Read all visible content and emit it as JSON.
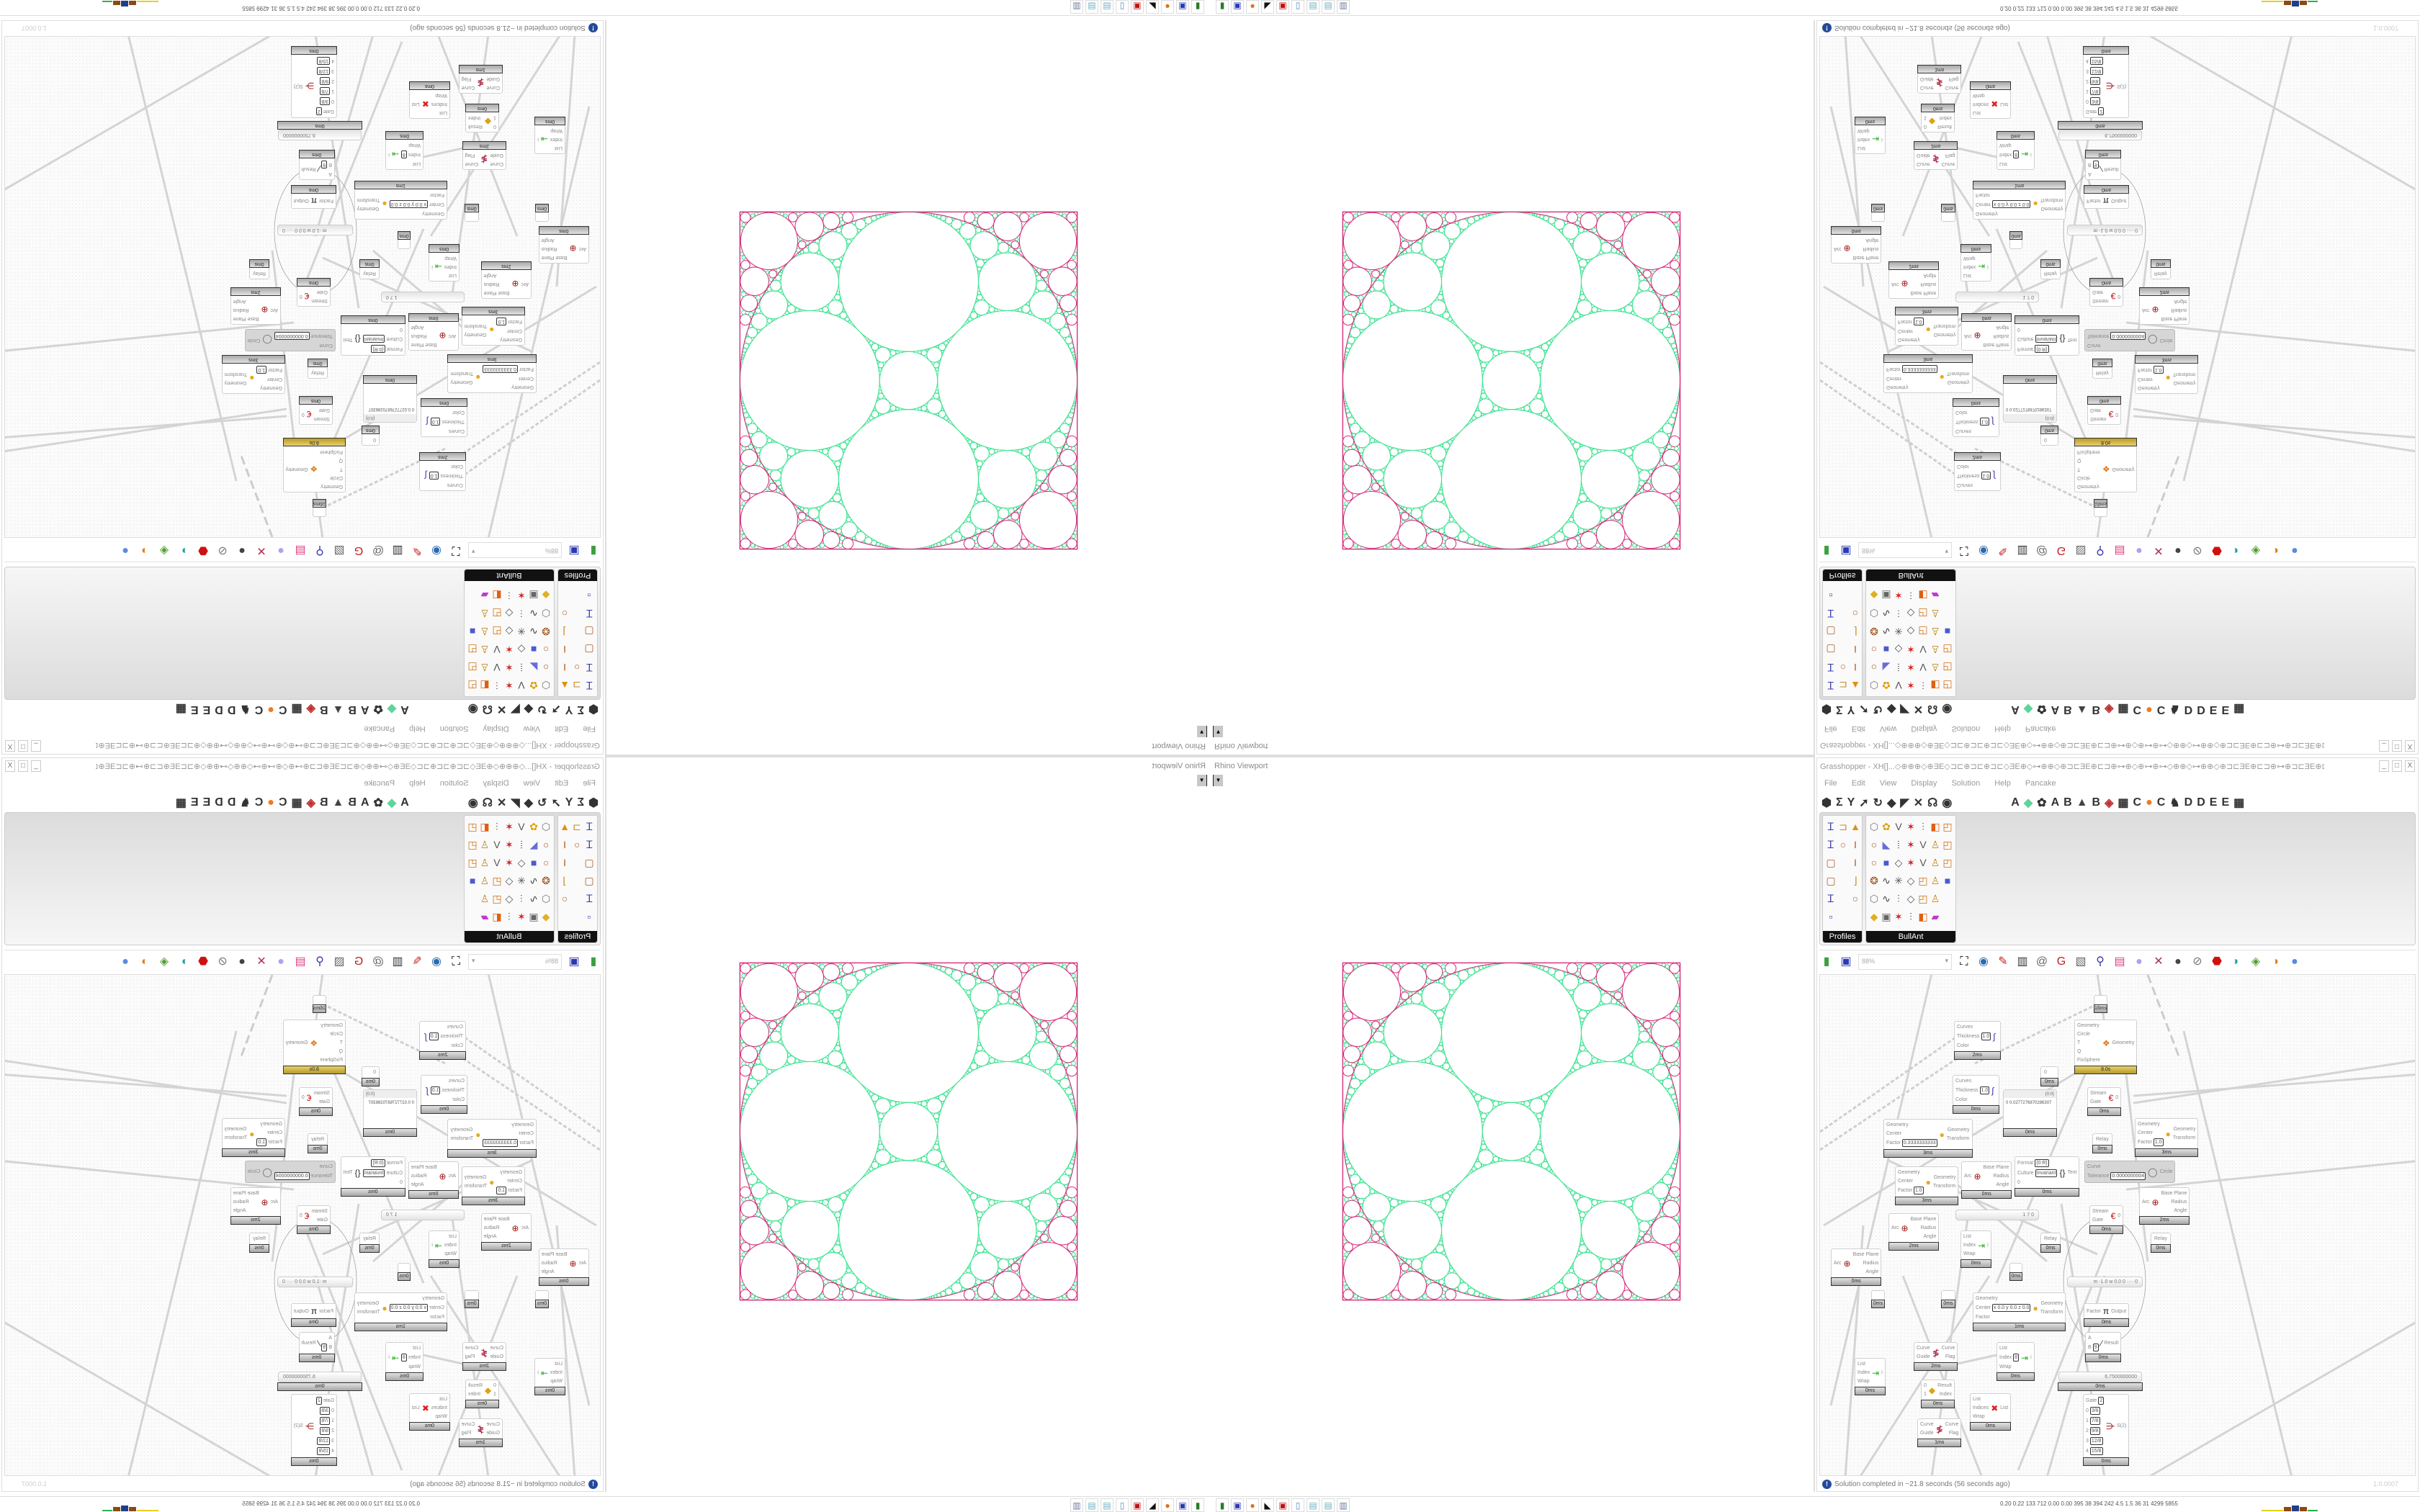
{
  "viewport": {
    "title": "Rhino Viewport",
    "dropdown_icon": "chevron-down-icon",
    "colors": {
      "packing_circles": "#3fe392",
      "outer_circles": "#d6307f"
    }
  },
  "grasshopper": {
    "title": "Grasshopper - XH[]...◇⊕⊕⊕◇⊕ƎE◇⊐⊏⊕⊐⊏⊕⊐⊏◇ƎE⊕◇⊶⊕⊕◇⊕⊐⊏ƎE⊕⊏⊐⊕⊶⊕◇⊕⊶⊕⊶◇⊕⊕◇⊶⊕⊕◇⊕⊐⊏ƎE⊕⊏⊐⊕⊶⊕⊐⊏ƎE⊕⊏⊐⊕...",
    "window_buttons": [
      "_",
      "□",
      "X"
    ],
    "menu": [
      "File",
      "Edit",
      "View",
      "Display",
      "Solution",
      "Help",
      "Pancake"
    ],
    "tab_icons_left": [
      "⬢",
      "Σ",
      "Y",
      "➚",
      "↻",
      "◆",
      "◤",
      "✕",
      "☊",
      "◉"
    ],
    "tab_icons_right": [
      "A",
      "◆",
      "✿",
      "A",
      "B",
      "▲",
      "B",
      "◈",
      "▦",
      "C",
      "●",
      "C",
      "♞",
      "D",
      "D",
      "E",
      "E",
      "▦"
    ],
    "panels": [
      {
        "label": "Profiles",
        "icons": [
          "ibeam-profile",
          "c-channel",
          "fire",
          "ibeam-profile",
          "ring",
          "ibeam",
          "rect",
          "",
          "ibeam",
          "rect",
          "",
          "l-angle",
          "ibeam-profile",
          "",
          "ring",
          "squares"
        ]
      },
      {
        "label": "BullAnt",
        "icons": [
          "block",
          "flower",
          "v-truss",
          "star",
          "divide",
          "warp",
          "frame",
          "ring",
          "surface",
          "grid",
          "star",
          "v-truss",
          "lock",
          "frame",
          "ring",
          "cube",
          "poly",
          "star",
          "v-truss",
          "lock",
          "frame",
          "ball",
          "curve",
          "net",
          "poly",
          "frame",
          "lock",
          "cube",
          "block",
          "curve",
          "divide",
          "poly",
          "frame",
          "lock",
          "",
          "gem",
          "panel",
          "star",
          "divide",
          "warp",
          "rainbow"
        ]
      }
    ],
    "canvas_toolbar": {
      "zoom_value": "88%",
      "icons": [
        "new-document",
        "save",
        "zoom-extents",
        "preview",
        "sketch",
        "bug",
        "mail",
        "gha-export",
        "image",
        "search",
        "package",
        "bulb",
        "weave",
        "sphere-dark",
        "link",
        "red-gem",
        "teal-shape",
        "green-shape",
        "orange-sphere",
        "blue-sphere"
      ]
    },
    "status": {
      "message": "Solution completed in ~21.8 seconds (56 seconds ago)",
      "version": "1.0.0007"
    }
  },
  "canvas": {
    "nodes": [
      {
        "type": "component",
        "inputs": [
          "Curves",
          "Thickness",
          "Color"
        ],
        "values": [
          "",
          "1.0",
          ""
        ],
        "outputs": [],
        "time": "2ms",
        "icon": "custom-preview-icon"
      },
      {
        "type": "component",
        "inputs": [
          "Curves",
          "Thickness",
          "Color"
        ],
        "values": [
          "",
          "1.0",
          ""
        ],
        "outputs": [],
        "time": "0ms",
        "icon": "custom-preview-icon"
      },
      {
        "type": "component",
        "inputs": [
          "Geometry",
          "Center",
          "Factor"
        ],
        "values": [
          "",
          "",
          "0.3333333333"
        ],
        "outputs": [
          "Geometry",
          "Transform"
        ],
        "time": "3ms",
        "icon": "scale-icon"
      },
      {
        "type": "component",
        "inputs": [
          "Geometry",
          "Center",
          "Factor"
        ],
        "values": [
          "",
          "",
          "1.0"
        ],
        "outputs": [
          "Geometry",
          "Transform"
        ],
        "time": "3ms",
        "icon": "scale-icon"
      },
      {
        "type": "component",
        "inputs": [
          "Arc"
        ],
        "values": [
          ""
        ],
        "outputs": [
          "Base Plane",
          "Radius",
          "Angle"
        ],
        "time": "2ms",
        "icon": "deconstruct-arc-icon"
      },
      {
        "type": "component",
        "inputs": [
          "Arc"
        ],
        "values": [
          ""
        ],
        "outputs": [
          "Base Plane",
          "Radius",
          "Angle"
        ],
        "time": "0ms",
        "icon": "deconstruct-arc-icon"
      },
      {
        "type": "panel",
        "header": "{0;0}",
        "text": "0 0.0277276870286307",
        "time": "0ms"
      },
      {
        "type": "component",
        "inputs": [
          "Arc"
        ],
        "values": [
          ""
        ],
        "outputs": [
          "Base Plane",
          "Radius",
          "Angle"
        ],
        "time": "0ms",
        "icon": "deconstruct-arc-icon"
      },
      {
        "type": "component",
        "inputs": [
          "Format",
          "Culture",
          "0"
        ],
        "values": [
          "{0:R}",
          "Invariant",
          ""
        ],
        "outputs": [
          "Text"
        ],
        "time": "0ms",
        "icon": "format-icon"
      },
      {
        "type": "param",
        "label": "0",
        "time": "0ms"
      },
      {
        "type": "component",
        "inputs": [
          "Geometry",
          "Circle",
          "T",
          "Q",
          "FixSphere"
        ],
        "values": [
          "",
          "",
          "",
          "",
          ""
        ],
        "outputs": [
          "Geometry"
        ],
        "time": "8.0s",
        "icon": "apollonian-script-icon",
        "state": "gold"
      },
      {
        "type": "param",
        "label": "",
        "time": "16ms"
      },
      {
        "type": "component",
        "inputs": [
          "Stream",
          "Gate"
        ],
        "values": [
          "",
          ""
        ],
        "outputs": [
          "0"
        ],
        "time": "0ms",
        "icon": "stream-gate-icon"
      },
      {
        "type": "param",
        "label": "Relay",
        "time": "0ms"
      },
      {
        "type": "component",
        "inputs": [
          "Curve",
          "Tolerance"
        ],
        "values": [
          "",
          "0.0000000004"
        ],
        "outputs": [
          "Circle"
        ],
        "time": "",
        "icon": "circle-fit-icon",
        "state": "disabled"
      },
      {
        "type": "component",
        "inputs": [
          "Geometry",
          "Center",
          "Factor"
        ],
        "values": [
          "",
          "",
          "1.0"
        ],
        "outputs": [
          "Geometry",
          "Transform"
        ],
        "time": "3ms",
        "icon": "scale-icon"
      },
      {
        "type": "component",
        "inputs": [
          "Arc"
        ],
        "values": [
          ""
        ],
        "outputs": [
          "Base Plane",
          "Radius",
          "Angle"
        ],
        "time": "2ms",
        "icon": "deconstruct-arc-icon"
      },
      {
        "type": "component",
        "inputs": [
          "Stream",
          "Gate"
        ],
        "values": [
          "",
          ""
        ],
        "outputs": [
          "0"
        ],
        "time": "0ms",
        "icon": "stream-gate-icon"
      },
      {
        "type": "param",
        "label": "Relay",
        "time": "0ms"
      },
      {
        "type": "param",
        "label": "Relay",
        "time": "0ms"
      },
      {
        "type": "slider",
        "value": "1 7 0"
      },
      {
        "type": "component",
        "inputs": [
          "List",
          "Index",
          "Wrap"
        ],
        "values": [
          "",
          "",
          ""
        ],
        "outputs": [
          "i"
        ],
        "time": "0ms",
        "icon": "list-item-icon"
      },
      {
        "type": "param",
        "label": "",
        "time": "0ms"
      },
      {
        "type": "param",
        "label": "",
        "time": "0ms"
      },
      {
        "type": "param",
        "label": "",
        "time": "0ms"
      },
      {
        "type": "component",
        "inputs": [
          "Geometry",
          "Center",
          "Factor"
        ],
        "values": [
          "",
          "x 0.0 y 0.0 z 0.0",
          ""
        ],
        "outputs": [
          "Geometry",
          "Transform"
        ],
        "time": "1ms",
        "icon": "scale-icon"
      },
      {
        "type": "slider",
        "value": "m -1.0 w 0.0 0 ···· 0"
      },
      {
        "type": "component",
        "inputs": [
          "Factor"
        ],
        "values": [
          ""
        ],
        "outputs": [
          "Output"
        ],
        "time": "0ms",
        "icon": "pi-icon"
      },
      {
        "type": "component",
        "inputs": [
          "A",
          "B"
        ],
        "values": [
          "",
          "9"
        ],
        "outputs": [
          "Result"
        ],
        "time": "0ms",
        "icon": "division-icon"
      },
      {
        "type": "slider",
        "value": "6.7500000000",
        "time": "0ms"
      },
      {
        "type": "component",
        "inputs": [
          "Gate",
          "0",
          "1",
          "2",
          "3",
          "4"
        ],
        "values": [
          "2",
          "3/8",
          "7/8",
          "9/8",
          "12/8",
          "15/8"
        ],
        "outputs": [
          "S(2)"
        ],
        "time": "0ms",
        "icon": "stream-filter-icon"
      },
      {
        "type": "component",
        "inputs": [
          "List",
          "Index",
          "Wrap"
        ],
        "values": [
          "",
          "8",
          ""
        ],
        "outputs": [
          "i"
        ],
        "time": "0ms",
        "icon": "list-item-icon"
      },
      {
        "type": "component",
        "inputs": [
          "Curve",
          "Guide"
        ],
        "values": [
          "",
          ""
        ],
        "outputs": [
          "Curve",
          "Flag"
        ],
        "time": "2ms",
        "icon": "flip-curve-icon"
      },
      {
        "type": "component",
        "inputs": [
          "0",
          "1"
        ],
        "values": [
          "",
          ""
        ],
        "outputs": [
          "Result",
          "Index"
        ],
        "time": "0ms",
        "icon": "pick-icon"
      },
      {
        "type": "component",
        "inputs": [
          "List",
          "Indices",
          "Wrap"
        ],
        "values": [
          "",
          "",
          ""
        ],
        "outputs": [
          "List"
        ],
        "time": "0ms",
        "icon": "cull-index-icon"
      },
      {
        "type": "component",
        "inputs": [
          "List",
          "Index",
          "Wrap"
        ],
        "values": [
          "",
          "",
          ""
        ],
        "outputs": [
          "i"
        ],
        "time": "0ms",
        "icon": "list-item-icon"
      },
      {
        "type": "component",
        "inputs": [
          "Curve",
          "Guide"
        ],
        "values": [
          "",
          ""
        ],
        "outputs": [
          "Curve",
          "Flag"
        ],
        "time": "1ms",
        "icon": "flip-curve-icon"
      }
    ]
  },
  "taskbar": {
    "icons": [
      "battery-app",
      "floppy-64",
      "firefox",
      "rhino",
      "red-app",
      "calculator",
      "notepad",
      "notepad",
      "scroll-app"
    ],
    "stats": "0.20 0.22 133 712 0.00 0.00 395 38 394 242 4.5 1.5 36 31 4299 5855"
  }
}
